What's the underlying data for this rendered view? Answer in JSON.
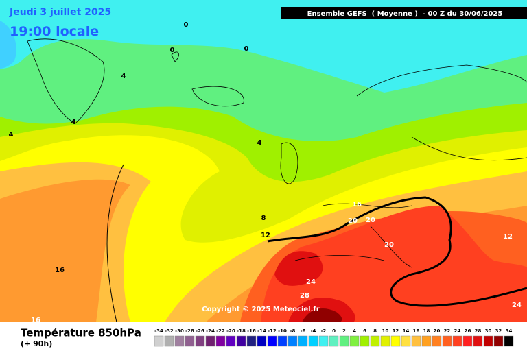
{
  "header": {
    "date": "Jeudi 3 juillet 2025",
    "time": "19:00 locale",
    "model": "Ensemble GEFS  ( Moyenne )  - 00 Z du 30/06/2025"
  },
  "contour_labels": [
    0,
    0,
    0,
    4,
    4,
    4,
    4,
    8,
    12,
    12,
    16,
    16,
    16,
    20,
    20,
    20,
    24,
    28,
    24
  ],
  "copyright": "Copyright © 2025 Meteociel.fr",
  "legend": {
    "title": "Température 850hPa",
    "subtitle": "(+ 90h)",
    "values": [
      -34,
      -32,
      -30,
      -28,
      -26,
      -24,
      -22,
      -20,
      -18,
      -16,
      -14,
      -12,
      -10,
      -8,
      -6,
      -4,
      -2,
      0,
      2,
      4,
      6,
      8,
      10,
      12,
      14,
      16,
      18,
      20,
      22,
      24,
      26,
      28,
      30,
      32,
      34
    ],
    "colors": [
      "#d0d0d0",
      "#b0b0b0",
      "#a080a0",
      "#906090",
      "#804080",
      "#702070",
      "#8000a0",
      "#6000c0",
      "#4000a0",
      "#202080",
      "#0000c0",
      "#0000ff",
      "#0040ff",
      "#0080ff",
      "#00b0ff",
      "#00d0ff",
      "#40f0f0",
      "#60f0c0",
      "#60f080",
      "#80f040",
      "#a0f000",
      "#c0f000",
      "#e0f000",
      "#ffff00",
      "#ffe040",
      "#ffc040",
      "#ffa020",
      "#ff8020",
      "#ff6020",
      "#ff4020",
      "#ff2020",
      "#e01010",
      "#c00000",
      "#900000",
      "#000000"
    ]
  }
}
